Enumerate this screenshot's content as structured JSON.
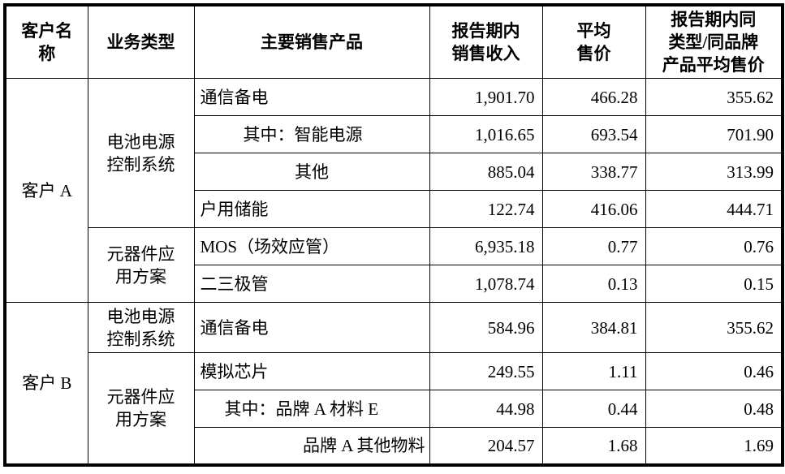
{
  "page": {
    "background": "#ffffff"
  },
  "table": {
    "border_color": "#000000",
    "text_color": "#000000",
    "headers": [
      {
        "id": "customer",
        "label": "客户名\n称"
      },
      {
        "id": "business",
        "label": "业务类型"
      },
      {
        "id": "product",
        "label": "主要销售产品"
      },
      {
        "id": "revenue",
        "label": "报告期内\n销售收入"
      },
      {
        "id": "avg_price",
        "label": "平均\n售价"
      },
      {
        "id": "same_type_avg_price",
        "label": "报告期内同\n类型/同品牌\n产品平均售价"
      }
    ],
    "rows": [
      {
        "customer": {
          "label": "客户 A",
          "rowspan": 6
        },
        "business": {
          "label": "电池电源\n控制系统",
          "rowspan": 4
        },
        "product": {
          "label": "通信备电"
        },
        "revenue": "1,901.70",
        "avg_price": "466.28",
        "same_type_avg_price": "355.62"
      },
      {
        "product": {
          "label": "其中：智能电源",
          "indent": 60
        },
        "revenue": "1,016.65",
        "avg_price": "693.54",
        "same_type_avg_price": "701.90"
      },
      {
        "product": {
          "label": "其他",
          "align": "center"
        },
        "revenue": "885.04",
        "avg_price": "338.77",
        "same_type_avg_price": "313.99"
      },
      {
        "product": {
          "label": "户用储能"
        },
        "revenue": "122.74",
        "avg_price": "416.06",
        "same_type_avg_price": "444.71"
      },
      {
        "business": {
          "label": "元器件应\n用方案",
          "rowspan": 2
        },
        "product": {
          "label": "MOS（场效应管）"
        },
        "revenue": "6,935.18",
        "avg_price": "0.77",
        "same_type_avg_price": "0.76"
      },
      {
        "product": {
          "label": "二三极管"
        },
        "revenue": "1,078.74",
        "avg_price": "0.13",
        "same_type_avg_price": "0.15"
      },
      {
        "tall": true,
        "customer": {
          "label": "客户 B",
          "rowspan": 4
        },
        "business": {
          "label": "电池电源\n控制系统",
          "rowspan": 1
        },
        "product": {
          "label": "通信备电"
        },
        "revenue": "584.96",
        "avg_price": "384.81",
        "same_type_avg_price": "355.62"
      },
      {
        "business": {
          "label": "元器件应\n用方案",
          "rowspan": 3
        },
        "product": {
          "label": "模拟芯片"
        },
        "revenue": "249.55",
        "avg_price": "1.11",
        "same_type_avg_price": "0.46"
      },
      {
        "product": {
          "label": "其中：品牌 A 材料 E",
          "indent": 37
        },
        "revenue": "44.98",
        "avg_price": "0.44",
        "same_type_avg_price": "0.48"
      },
      {
        "product": {
          "label": "品牌 A 其他物料",
          "align": "right"
        },
        "revenue": "204.57",
        "avg_price": "1.68",
        "same_type_avg_price": "1.69"
      }
    ]
  }
}
